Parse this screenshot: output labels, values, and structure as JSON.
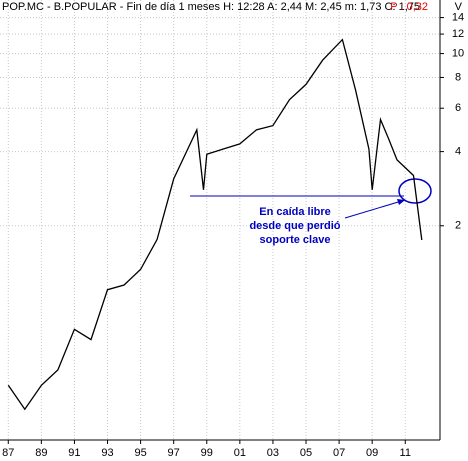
{
  "chart_data": {
    "type": "line",
    "title": "POP.MC - B.POPULAR - Fin de día 1 meses H: 12:28 A: 2,44 M: 2,45 m: 1,73 C: 1,75",
    "subtitle": "P : 0,32",
    "y_axis_label": "V",
    "annotation": [
      "En caída libre",
      "desde que perdió",
      "soporte clave"
    ],
    "log_scale": true,
    "grid": true,
    "x": [
      1987,
      1988,
      1989,
      1990,
      1991,
      1992,
      1993,
      1994,
      1995,
      1996,
      1997,
      1998.4,
      1998.8,
      1999,
      2000,
      2001,
      2002,
      2003,
      2004,
      2005,
      2006,
      2007.2,
      2008,
      2008.8,
      2009,
      2009.5,
      2010,
      2010.5,
      2011.5,
      2012
    ],
    "series": [
      {
        "name": "POP.MC",
        "color": "#000000",
        "values": [
          0.45,
          0.36,
          0.45,
          0.52,
          0.76,
          0.69,
          1.1,
          1.15,
          1.33,
          1.76,
          3.1,
          4.9,
          2.8,
          3.9,
          4.1,
          4.3,
          4.9,
          5.1,
          6.5,
          7.5,
          9.4,
          11.4,
          7.1,
          4.1,
          2.8,
          5.4,
          4.5,
          3.7,
          3.2,
          1.75
        ]
      }
    ],
    "xlim": [
      1986.5,
      2013.1
    ],
    "ylim": [
      0.27,
      16.5
    ],
    "xticks": [
      {
        "value": 1987,
        "label": "87"
      },
      {
        "value": 1989,
        "label": "89"
      },
      {
        "value": 1991,
        "label": "91"
      },
      {
        "value": 1993,
        "label": "93"
      },
      {
        "value": 1995,
        "label": "95"
      },
      {
        "value": 1997,
        "label": "97"
      },
      {
        "value": 1999,
        "label": "99"
      },
      {
        "value": 2001,
        "label": "01"
      },
      {
        "value": 2003,
        "label": "03"
      },
      {
        "value": 2005,
        "label": "05"
      },
      {
        "value": 2007,
        "label": "07"
      },
      {
        "value": 2009,
        "label": "09"
      },
      {
        "value": 2011,
        "label": "11"
      }
    ],
    "yticks": [
      2,
      4,
      6,
      8,
      10,
      12,
      14
    ]
  }
}
